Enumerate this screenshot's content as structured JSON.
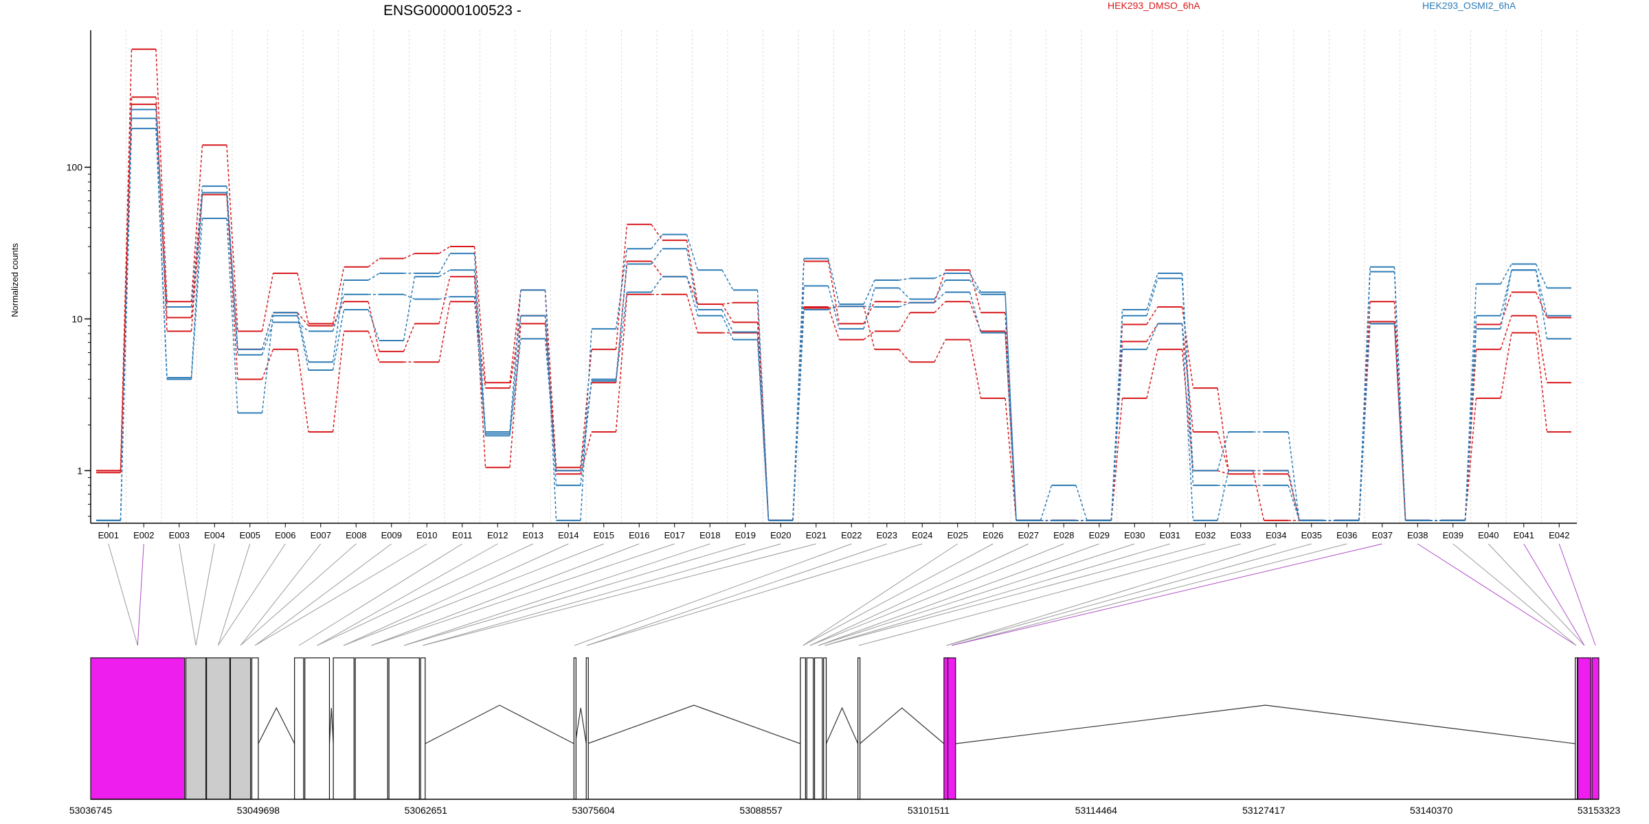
{
  "title": "ENSG00000100523 -",
  "ylabel": "Normalized counts",
  "legend": [
    {
      "label": "HEK293_DMSO_6hA",
      "color": "#D7191C"
    },
    {
      "label": "HEK293_OSMI2_6hA",
      "color": "#2C7BB6"
    }
  ],
  "colors": {
    "dmso": "#D7191C",
    "osmi": "#2C7BB6",
    "highlight": "#EE1EEE",
    "intron": "#CCCCCC",
    "grid": "#DDDDDD"
  },
  "chart_data": {
    "type": "line",
    "yscale": "log",
    "ylim": [
      0.45,
      800
    ],
    "yticks": [
      1,
      10,
      100
    ],
    "yticklabels": [
      "1",
      "10",
      "100"
    ],
    "categories": [
      "E001",
      "E002",
      "E003",
      "E004",
      "E005",
      "E006",
      "E007",
      "E008",
      "E009",
      "E010",
      "E011",
      "E012",
      "E013",
      "E014",
      "E015",
      "E016",
      "E017",
      "E018",
      "E019",
      "E020",
      "E021",
      "E022",
      "E023",
      "E024",
      "E025",
      "E026",
      "E027",
      "E028",
      "E029",
      "E030",
      "E031",
      "E032",
      "E033",
      "E034",
      "E035",
      "E036",
      "E037",
      "E038",
      "E039",
      "E040",
      "E041",
      "E042"
    ],
    "highlighted_exons": [
      "E002",
      "E037",
      "E038",
      "E041",
      "E042"
    ],
    "series": [
      {
        "name": "HEK293_DMSO_6hA",
        "group": "dmso",
        "values": [
          1.0,
          600,
          13,
          140,
          8.3,
          20,
          9.3,
          22,
          25,
          27,
          30,
          3.8,
          15.5,
          1.05,
          6.3,
          42,
          33,
          12.5,
          12.8,
          0.47,
          24,
          9.3,
          13,
          12.8,
          21,
          11,
          0.47,
          0.47,
          0.47,
          9.2,
          12,
          3.5,
          1.0,
          0.47,
          0.47,
          0.47,
          13,
          0.47,
          0.47,
          9.2,
          15,
          10.2
        ]
      },
      {
        "name": "HEK293_DMSO_6hA",
        "group": "dmso",
        "values": [
          1.0,
          290,
          8.3,
          68,
          6.3,
          11,
          9.0,
          13,
          6.1,
          9.3,
          19,
          1.05,
          9.3,
          1.0,
          3.8,
          24,
          19,
          12.5,
          9.5,
          0.47,
          12,
          7.3,
          8.3,
          11,
          13,
          8.3,
          0.47,
          0.47,
          0.47,
          7.1,
          9.3,
          1.8,
          1.0,
          1.0,
          0.47,
          0.47,
          9.6,
          0.47,
          0.47,
          6.3,
          10.5,
          3.8
        ]
      },
      {
        "name": "HEK293_DMSO_6hA",
        "group": "dmso",
        "values": [
          0.97,
          260,
          10.2,
          66,
          4.0,
          6.3,
          1.8,
          8.3,
          5.2,
          5.2,
          13,
          3.5,
          10.5,
          0.95,
          1.8,
          14.5,
          14.5,
          8.1,
          8.1,
          0.47,
          11.8,
          12.1,
          6.3,
          5.2,
          7.3,
          3.0,
          0.47,
          0.47,
          0.47,
          3.0,
          6.3,
          1.0,
          0.95,
          0.95,
          0.47,
          0.47,
          9.3,
          0.47,
          0.47,
          3.0,
          8.1,
          1.8
        ]
      },
      {
        "name": "HEK293_OSMI2_6hA",
        "group": "osmi",
        "values": [
          0.47,
          240,
          12,
          75,
          6.3,
          11,
          5.2,
          18,
          20,
          20,
          27,
          1.8,
          15.5,
          0.47,
          8.6,
          29,
          36,
          21,
          15.5,
          0.47,
          25,
          12.5,
          18,
          18.5,
          20,
          15,
          0.47,
          0.8,
          0.47,
          11.5,
          20,
          1.0,
          1.8,
          1.8,
          0.47,
          0.47,
          22,
          0.47,
          0.47,
          17,
          23,
          16
        ]
      },
      {
        "name": "HEK293_OSMI2_6hA",
        "group": "osmi",
        "values": [
          0.47,
          210,
          4.1,
          68,
          5.8,
          9.5,
          8.3,
          14.5,
          14.5,
          13.5,
          14,
          1.75,
          10.5,
          0.8,
          4.0,
          23,
          29,
          11.5,
          8.2,
          0.47,
          16.5,
          8.6,
          16,
          13.5,
          18,
          14.5,
          0.47,
          0.47,
          0.47,
          10.5,
          18.5,
          0.8,
          0.8,
          0.8,
          0.47,
          0.47,
          20.5,
          0.47,
          0.47,
          10.5,
          21,
          7.4
        ]
      },
      {
        "name": "HEK293_OSMI2_6hA",
        "group": "osmi",
        "values": [
          0.47,
          180,
          4.0,
          46,
          2.4,
          10.5,
          4.6,
          11.5,
          7.2,
          19,
          21,
          1.7,
          7.4,
          1.0,
          3.9,
          15,
          19,
          10.5,
          7.3,
          0.47,
          11.5,
          12.1,
          12,
          12.8,
          15,
          8.1,
          0.47,
          0.47,
          0.47,
          6.3,
          9.3,
          0.47,
          1.0,
          1.0,
          0.47,
          0.47,
          9.3,
          0.47,
          0.47,
          8.6,
          21,
          10.5
        ]
      }
    ],
    "gene_model": {
      "xticks": [
        "53036745",
        "53049698",
        "53062651",
        "53075604",
        "53088557",
        "53101511",
        "53114464",
        "53127417",
        "53140370",
        "53153323"
      ],
      "xrange": [
        53036745,
        53153323
      ],
      "exon_starts": [
        53036745,
        53044100,
        53045700,
        53047550,
        53049200,
        53052500,
        53053300,
        53055500,
        53057200,
        53059800,
        53062250,
        53074100,
        53075050,
        53091600,
        53092100,
        53092700,
        53093400,
        53096050,
        53102700,
        53103000,
        53151500,
        53151700,
        53152800
      ],
      "exon_ends": [
        53044000,
        53045650,
        53047500,
        53049100,
        53049700,
        53053200,
        53055200,
        53057100,
        53059700,
        53062150,
        53062600,
        53074200,
        53075150,
        53092000,
        53092600,
        53093300,
        53093600,
        53096200,
        53103100,
        53103600,
        53151650,
        53152700,
        53153323
      ]
    }
  }
}
